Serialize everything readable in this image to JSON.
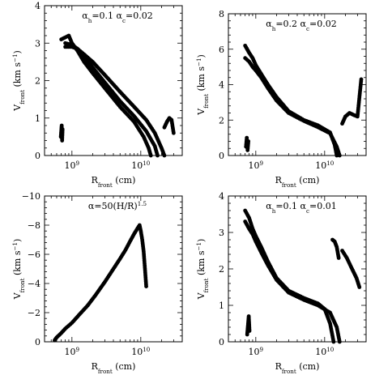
{
  "chart_data": [
    {
      "type": "scatter",
      "annotation": "α_h=0.1  α_c=0.02",
      "annotation_parts": [
        "α",
        "h",
        "=0.1  α",
        "c",
        "=0.02"
      ],
      "xlabel": "R_front (cm)",
      "xlabel_parts": [
        "R",
        "front",
        " (cm)"
      ],
      "ylabel": "V_front (km s⁻¹)",
      "ylabel_parts": [
        "V",
        "front",
        " (km s",
        "−1",
        ")"
      ],
      "x_scale": "log",
      "xlim": [
        400000000.0,
        40000000000.0
      ],
      "ylim": [
        0,
        4
      ],
      "xtick_labels": [
        {
          "value": 1000000000.0,
          "base": "10",
          "exp": "9"
        },
        {
          "value": 10000000000.0,
          "base": "10",
          "exp": "10"
        }
      ],
      "ytick_labels": [
        "0",
        "1",
        "2",
        "3",
        "4"
      ],
      "ytick_values": [
        0,
        1,
        2,
        3,
        4
      ],
      "series": [
        {
          "values_x": [
            700000000.0,
            900000000.0,
            1000000000.0,
            1200000000.0,
            1500000000.0,
            2000000000.0,
            3000000000.0,
            5000000000.0,
            8000000000.0,
            11000000000.0,
            13000000000.0,
            14000000000.0
          ],
          "values_y": [
            3.1,
            3.2,
            3.0,
            2.8,
            2.5,
            2.2,
            1.8,
            1.3,
            0.9,
            0.5,
            0.2,
            0.0
          ]
        },
        {
          "values_x": [
            800000000.0,
            1000000000.0,
            1200000000.0,
            1500000000.0,
            2000000000.0,
            3000000000.0,
            5000000000.0,
            8000000000.0,
            12000000000.0,
            16000000000.0,
            17500000000.0
          ],
          "values_y": [
            3.0,
            2.95,
            2.85,
            2.65,
            2.35,
            1.95,
            1.45,
            1.05,
            0.65,
            0.25,
            0.0
          ]
        },
        {
          "values_x": [
            800000000.0,
            1000000000.0,
            1200000000.0,
            1500000000.0,
            2000000000.0,
            3000000000.0,
            5000000000.0,
            8000000000.0,
            12000000000.0,
            16000000000.0,
            20000000000.0,
            22000000000.0
          ],
          "values_y": [
            2.9,
            2.9,
            2.85,
            2.7,
            2.5,
            2.15,
            1.7,
            1.3,
            0.95,
            0.6,
            0.2,
            0.0
          ]
        },
        {
          "values_x": [
            690000000.0,
            700000000.0,
            710000000.0,
            720000000.0,
            730000000.0
          ],
          "values_y": [
            0.5,
            0.65,
            0.8,
            0.4,
            0.7
          ]
        },
        {
          "values_x": [
            22000000000.0,
            24000000000.0,
            26000000000.0,
            28000000000.0,
            30000000000.0
          ],
          "values_y": [
            0.75,
            0.9,
            1.0,
            0.95,
            0.6
          ]
        }
      ]
    },
    {
      "type": "scatter",
      "annotation": "α_h=0.2  α_c=0.02",
      "annotation_parts": [
        "α",
        "h",
        "=0.2  α",
        "c",
        "=0.02"
      ],
      "xlabel": "R_front (cm)",
      "xlabel_parts": [
        "R",
        "front",
        " (cm)"
      ],
      "ylabel": "V_front (km s⁻¹)",
      "ylabel_parts": [
        "V",
        "front",
        " (km s",
        "−1",
        ")"
      ],
      "x_scale": "log",
      "xlim": [
        400000000.0,
        40000000000.0
      ],
      "ylim": [
        0,
        8
      ],
      "xtick_labels": [
        {
          "value": 1000000000.0,
          "base": "10",
          "exp": "9"
        },
        {
          "value": 10000000000.0,
          "base": "10",
          "exp": "10"
        }
      ],
      "ytick_labels": [
        "0",
        "2",
        "4",
        "6",
        "8"
      ],
      "ytick_values": [
        0,
        2,
        4,
        6,
        8
      ],
      "series": [
        {
          "values_x": [
            700000000.0,
            800000000.0,
            900000000.0,
            1000000000.0,
            1200000000.0,
            1500000000.0,
            2000000000.0,
            3000000000.0,
            5000000000.0,
            8000000000.0,
            12000000000.0,
            14000000000.0,
            15000000000.0
          ],
          "values_y": [
            6.2,
            5.8,
            5.5,
            5.1,
            4.6,
            4.0,
            3.3,
            2.5,
            2.0,
            1.7,
            1.3,
            0.6,
            0.0
          ]
        },
        {
          "values_x": [
            700000000.0,
            800000000.0,
            900000000.0,
            1000000000.0,
            1200000000.0,
            1500000000.0,
            2000000000.0,
            3000000000.0,
            5000000000.0,
            8000000000.0,
            12000000000.0,
            15000000000.0,
            16500000000.0
          ],
          "values_y": [
            5.5,
            5.3,
            5.0,
            4.8,
            4.4,
            3.8,
            3.1,
            2.4,
            1.95,
            1.6,
            1.25,
            0.5,
            0.0
          ]
        },
        {
          "values_x": [
            720000000.0,
            740000000.0,
            760000000.0,
            780000000.0
          ],
          "values_y": [
            0.5,
            1.0,
            0.3,
            0.8
          ]
        },
        {
          "values_x": [
            18000000000.0,
            20000000000.0,
            23000000000.0,
            26000000000.0,
            30000000000.0,
            34000000000.0
          ],
          "values_y": [
            1.8,
            2.2,
            2.4,
            2.3,
            2.2,
            4.3
          ]
        }
      ]
    },
    {
      "type": "scatter",
      "annotation": "α=50(H/R)^1.5",
      "annotation_parts": [
        "α=50(H/R)",
        "1.5"
      ],
      "xlabel": "R_front (cm)",
      "xlabel_parts": [
        "R",
        "front",
        " (cm)"
      ],
      "ylabel": "V_front (km s⁻¹)",
      "ylabel_parts": [
        "V",
        "front",
        " (km s",
        "−1",
        ")"
      ],
      "x_scale": "log",
      "xlim": [
        400000000.0,
        40000000000.0
      ],
      "ylim": [
        0,
        -10
      ],
      "xtick_labels": [
        {
          "value": 1000000000.0,
          "base": "10",
          "exp": "9"
        },
        {
          "value": 10000000000.0,
          "base": "10",
          "exp": "10"
        }
      ],
      "ytick_labels": [
        "0",
        "−2",
        "−4",
        "−6",
        "−8",
        "−10"
      ],
      "ytick_values": [
        0,
        -2,
        -4,
        -6,
        -8,
        -10
      ],
      "series": [
        {
          "values_x": [
            560000000.0,
            600000000.0,
            700000000.0,
            800000000.0,
            1000000000.0,
            1300000000.0,
            1700000000.0,
            2200000000.0,
            3000000000.0,
            4000000000.0,
            5000000000.0,
            6000000000.0,
            7000000000.0,
            8000000000.0,
            9000000000.0,
            9600000000.0,
            10000000000.0,
            10500000000.0,
            11000000000.0,
            11500000000.0,
            12000000000.0
          ],
          "values_y": [
            -0.1,
            -0.3,
            -0.6,
            -0.9,
            -1.3,
            -1.9,
            -2.5,
            -3.2,
            -4.1,
            -5.0,
            -5.7,
            -6.3,
            -6.9,
            -7.4,
            -7.8,
            -8.0,
            -7.6,
            -7.0,
            -6.2,
            -5.0,
            -3.8
          ]
        }
      ]
    },
    {
      "type": "scatter",
      "annotation": "α_h=0.1  α_c=0.01",
      "annotation_parts": [
        "α",
        "h",
        "=0.1  α",
        "c",
        "=0.01"
      ],
      "xlabel": "R_front (cm)",
      "xlabel_parts": [
        "R",
        "front",
        " (cm)"
      ],
      "ylabel": "V_front (km s⁻¹)",
      "ylabel_parts": [
        "V",
        "front",
        " (km s",
        "−1",
        ")"
      ],
      "x_scale": "log",
      "xlim": [
        400000000.0,
        40000000000.0
      ],
      "ylim": [
        0,
        4
      ],
      "xtick_labels": [
        {
          "value": 1000000000.0,
          "base": "10",
          "exp": "9"
        },
        {
          "value": 10000000000.0,
          "base": "10",
          "exp": "10"
        }
      ],
      "ytick_labels": [
        "0",
        "1",
        "2",
        "3",
        "4"
      ],
      "ytick_values": [
        0,
        1,
        2,
        3,
        4
      ],
      "series": [
        {
          "values_x": [
            700000000.0,
            800000000.0,
            900000000.0,
            1000000000.0,
            1200000000.0,
            1500000000.0,
            2000000000.0,
            3000000000.0,
            5000000000.0,
            8000000000.0,
            10000000000.0,
            12000000000.0,
            13500000000.0
          ],
          "values_y": [
            3.6,
            3.4,
            3.1,
            2.9,
            2.6,
            2.2,
            1.75,
            1.4,
            1.2,
            1.05,
            0.9,
            0.5,
            0.0
          ]
        },
        {
          "values_x": [
            700000000.0,
            800000000.0,
            900000000.0,
            1000000000.0,
            1200000000.0,
            1500000000.0,
            2000000000.0,
            3000000000.0,
            5000000000.0,
            8000000000.0,
            12000000000.0,
            15000000000.0,
            16500000000.0
          ],
          "values_y": [
            3.3,
            3.1,
            2.95,
            2.75,
            2.45,
            2.1,
            1.7,
            1.35,
            1.15,
            1.0,
            0.8,
            0.4,
            0.0
          ]
        },
        {
          "values_x": [
            750000000.0,
            770000000.0,
            790000000.0,
            810000000.0
          ],
          "values_y": [
            0.2,
            0.45,
            0.7,
            0.3
          ]
        },
        {
          "values_x": [
            13000000000.0,
            14000000000.0,
            15000000000.0,
            16000000000.0
          ],
          "values_y": [
            2.8,
            2.75,
            2.6,
            2.3
          ]
        },
        {
          "values_x": [
            18000000000.0,
            21000000000.0,
            25000000000.0,
            29000000000.0,
            32000000000.0
          ],
          "values_y": [
            2.5,
            2.3,
            2.0,
            1.75,
            1.5
          ]
        }
      ]
    }
  ]
}
